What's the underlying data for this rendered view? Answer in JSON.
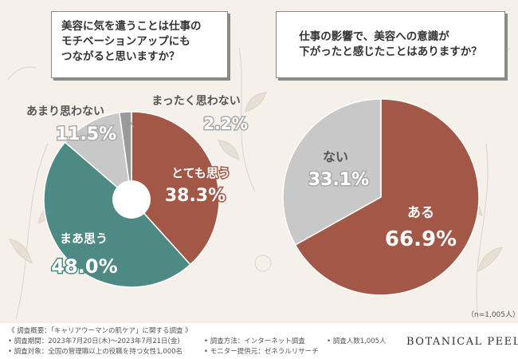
{
  "colors": {
    "very_much": "#a35847",
    "somewhat": "#4e8a84",
    "not_much": "#c8c8c8",
    "not_at_all": "#9a9a9a",
    "yes": "#a35847",
    "no": "#c8c8c8"
  },
  "questions": {
    "q1": "美容に気を遣うことは仕事の\nモチベーションアップにも\nつながると思いますか？",
    "q2": "仕事の影響で、美容への意識が\n下がったと感じたことはありますか？"
  },
  "chart_data": [
    {
      "type": "pie",
      "variant": "donut",
      "title": "美容に気を遣うことは仕事のモチベーションアップにもつながると思いますか？",
      "slices": [
        {
          "label": "とても思う",
          "value": 38.3,
          "display": "38.3%"
        },
        {
          "label": "まあ思う",
          "value": 48.0,
          "display": "48.0%"
        },
        {
          "label": "あまり思わない",
          "value": 11.5,
          "display": "11.5%"
        },
        {
          "label": "まったく思わない",
          "value": 2.2,
          "display": "2.2%"
        }
      ]
    },
    {
      "type": "pie",
      "title": "仕事の影響で、美容への意識が下がったと感じたことはありますか？",
      "slices": [
        {
          "label": "ある",
          "value": 66.9,
          "display": "66.9%"
        },
        {
          "label": "ない",
          "value": 33.1,
          "display": "33.1%"
        }
      ]
    }
  ],
  "sample_size": "（n=1,005人）",
  "footer": {
    "overview": "《 調査概要：「キャリアウーマンの肌ケア」に関する調査 》",
    "period": "• 調査期間：2023年7月20日(木)〜2023年7月21日(金)",
    "target": "• 調査対象：全国の管理職以上の役職を持つ女性1,000名",
    "method": "• 調査方法：インターネット調査",
    "provider": "• モニター提供元：ゼネラルリサーチ",
    "count": "• 調査人数1,005人",
    "brand": "BOTANICAL PEEL"
  }
}
